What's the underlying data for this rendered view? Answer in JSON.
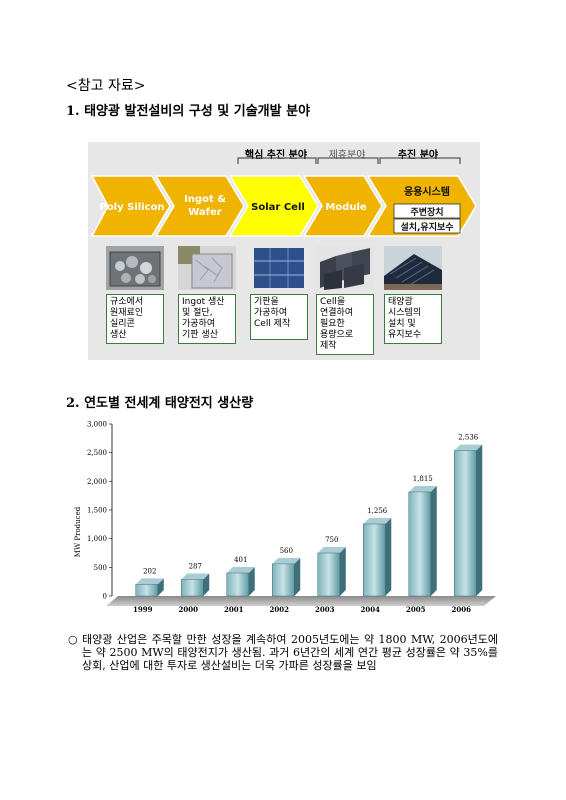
{
  "ref_title": "<참고 자료>",
  "section1": {
    "title": "1. 태양광 발전설비의 구성 및 기술개발 분야"
  },
  "diagram": {
    "top_labels": [
      "핵심 추진 분야",
      "제휴분야",
      "추진 분야"
    ],
    "stages": [
      {
        "lines": [
          "Poly Silicon"
        ]
      },
      {
        "lines": [
          "Ingot &",
          "Wafer"
        ]
      },
      {
        "lines": [
          "Solar Cell"
        ]
      },
      {
        "lines": [
          "Module"
        ]
      },
      {
        "lines": [
          "응용시스템"
        ]
      }
    ],
    "sub_boxes": [
      "주변장치",
      "설치,유지보수"
    ],
    "descriptions": [
      [
        "규소에서",
        "원재료인",
        "실리콘",
        "생산"
      ],
      [
        "Ingot 생산",
        "및 절단,",
        "가공하여",
        "기판 생산"
      ],
      [
        "기판을",
        "가공하여",
        "Cell 제작"
      ],
      [
        "Cell을",
        "연결하여",
        "필요한",
        "용량으로",
        "제작"
      ],
      [
        "태양광",
        "시스템의",
        "설치 및",
        "유지보수"
      ]
    ],
    "colors": {
      "arrow_gold": "#f0b400",
      "arrow_yellow": "#ffff00",
      "bg": "#e7e7e7"
    }
  },
  "section2": {
    "title": "2. 연도별 전세계 태양전지 생산량"
  },
  "chart_data": {
    "type": "bar",
    "categories": [
      "1999",
      "2000",
      "2001",
      "2002",
      "2003",
      "2004",
      "2005",
      "2006"
    ],
    "values": [
      202,
      287,
      401,
      560,
      750,
      1256,
      1815,
      2536
    ],
    "data_labels": [
      "202",
      "287",
      "401",
      "560",
      "750",
      "1,256",
      "1,815",
      "2,536"
    ],
    "ylabel": "MW Produced",
    "ylim": [
      0,
      3000
    ],
    "yticks": [
      "0",
      "500",
      "1,000",
      "1,500",
      "2,000",
      "2,500",
      "3,000"
    ],
    "grid": false,
    "bar_color": "#5f9aa4"
  },
  "paragraph": {
    "bullet": "○",
    "text": "태양광 산업은 주목할 만한 성장을 계속하여 2005년도에는 약 1800 MW, 2006년도에는 약 2500 MW의 태양전지가 생산됨. 과거 6년간의 세계 연간 평균 성장률은 약 35%를 상회, 산업에 대한 투자로 생산설비는 더욱 가파른 성장률을 보임"
  }
}
